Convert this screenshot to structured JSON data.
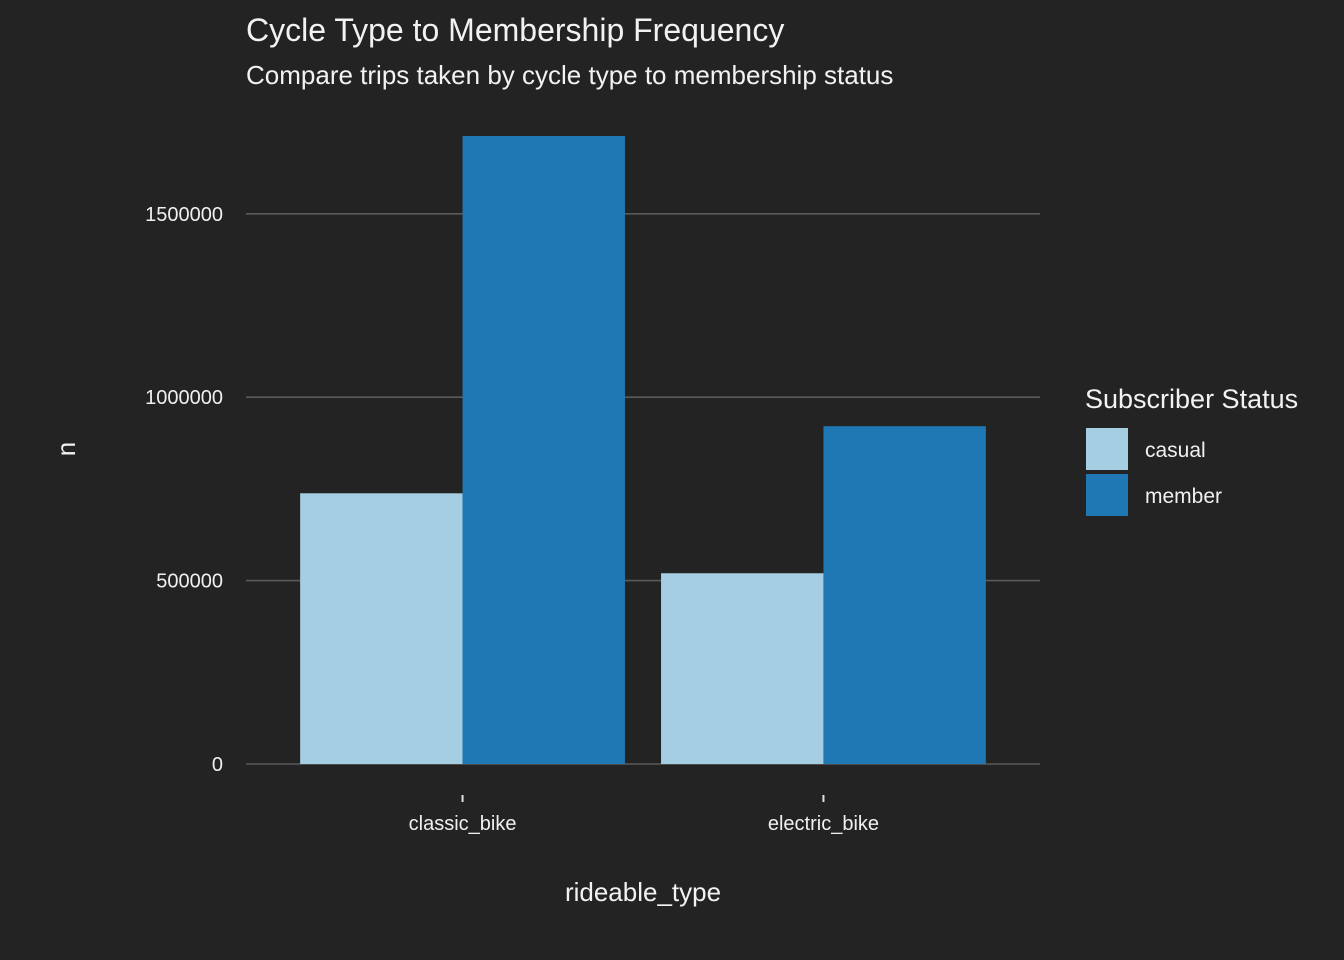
{
  "chart_data": {
    "type": "bar",
    "title": "Cycle Type to Membership Frequency",
    "subtitle": "Compare trips taken by cycle type to membership status",
    "xlabel": "rideable_type",
    "ylabel": "n",
    "categories": [
      "classic_bike",
      "electric_bike"
    ],
    "series": [
      {
        "name": "casual",
        "color": "#a6cee3",
        "values": [
          738000,
          520000
        ]
      },
      {
        "name": "member",
        "color": "#1f78b4",
        "values": [
          1712000,
          921000
        ]
      }
    ],
    "ylim": [
      0,
      1712000
    ],
    "yticks": [
      0,
      500000,
      1000000,
      1500000
    ],
    "ytick_labels": [
      "0",
      "500000",
      "1000000",
      "1500000"
    ],
    "grid": true,
    "legend": {
      "title": "Subscriber Status",
      "position": "right"
    },
    "background_color": "#232323"
  }
}
